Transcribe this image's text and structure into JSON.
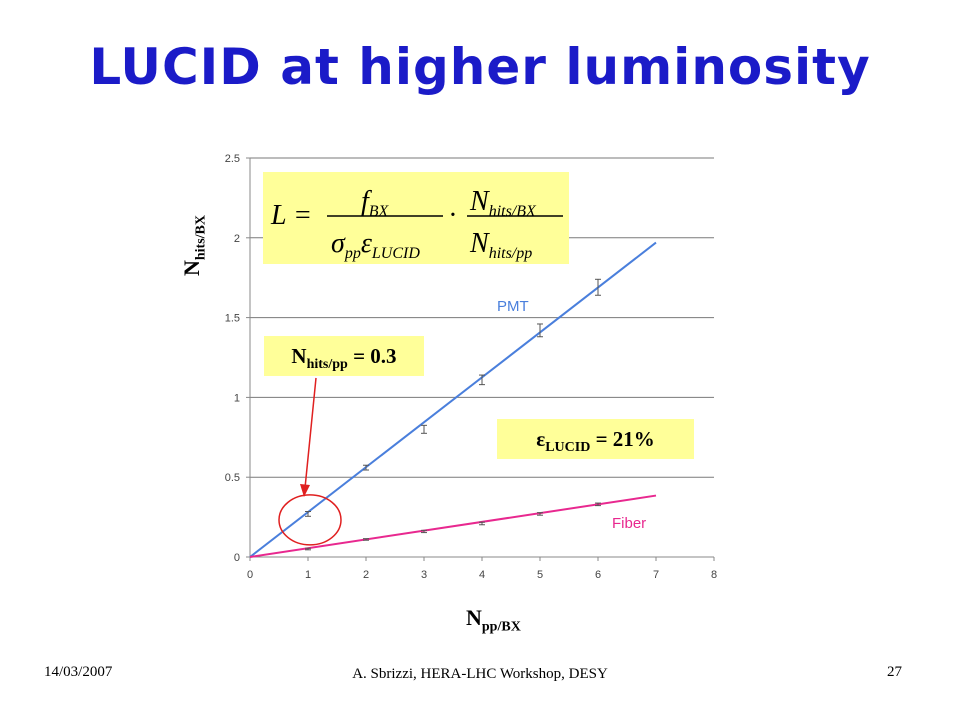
{
  "slide": {
    "title": "LUCID at higher luminosity",
    "footer_date": "14/03/2007",
    "footer_center": "A. Sbrizzi, HERA-LHC Workshop, DESY",
    "page_number": "27"
  },
  "formula": {
    "lhs": "L =",
    "num1": "f",
    "num1_sub": "BX",
    "den1_a": "σ",
    "den1_a_sub": "pp",
    "den1_b": "ε",
    "den1_b_sub": "LUCID",
    "dot": "·",
    "num2": "N",
    "num2_sub": "hits/BX",
    "den2": "N",
    "den2_sub": "hits/pp"
  },
  "annotations": {
    "nhits_main": "N",
    "nhits_sub": "hits/pp",
    "nhits_value": " = 0.3",
    "eps_main": "ε",
    "eps_sub": "LUCID",
    "eps_value": " = 21%"
  },
  "chart_data": {
    "type": "line",
    "xlabel_main": "N",
    "xlabel_sub": "pp/BX",
    "ylabel_main": "N",
    "ylabel_sub": "hits/BX",
    "xlim": [
      0,
      8
    ],
    "ylim": [
      0,
      2.5
    ],
    "x_ticks": [
      "0",
      "1",
      "2",
      "3",
      "4",
      "5",
      "6",
      "7",
      "8"
    ],
    "y_ticks": [
      "0",
      "0.5",
      "1",
      "1.5",
      "2",
      "2.5"
    ],
    "grid": "horizontal",
    "series": [
      {
        "name": "PMT",
        "color": "#4a7fdc",
        "fit_line": [
          [
            0,
            0
          ],
          [
            7,
            1.97
          ]
        ],
        "points": [
          {
            "x": 1,
            "y": 0.27,
            "err": 0.015
          },
          {
            "x": 2,
            "y": 0.56,
            "err": 0.015
          },
          {
            "x": 3,
            "y": 0.8,
            "err": 0.025
          },
          {
            "x": 4,
            "y": 1.11,
            "err": 0.03
          },
          {
            "x": 5,
            "y": 1.42,
            "err": 0.04
          },
          {
            "x": 6,
            "y": 1.69,
            "err": 0.05
          }
        ]
      },
      {
        "name": "Fiber",
        "color": "#e8288f",
        "fit_line": [
          [
            0,
            0
          ],
          [
            7,
            0.385
          ]
        ],
        "points": [
          {
            "x": 1,
            "y": 0.05,
            "err": 0.005
          },
          {
            "x": 2,
            "y": 0.11,
            "err": 0.005
          },
          {
            "x": 3,
            "y": 0.16,
            "err": 0.007
          },
          {
            "x": 4,
            "y": 0.21,
            "err": 0.008
          },
          {
            "x": 5,
            "y": 0.27,
            "err": 0.008
          },
          {
            "x": 6,
            "y": 0.33,
            "err": 0.008
          }
        ]
      }
    ],
    "highlight": {
      "x": 1,
      "y": 0.27,
      "color": "#e02020"
    }
  }
}
